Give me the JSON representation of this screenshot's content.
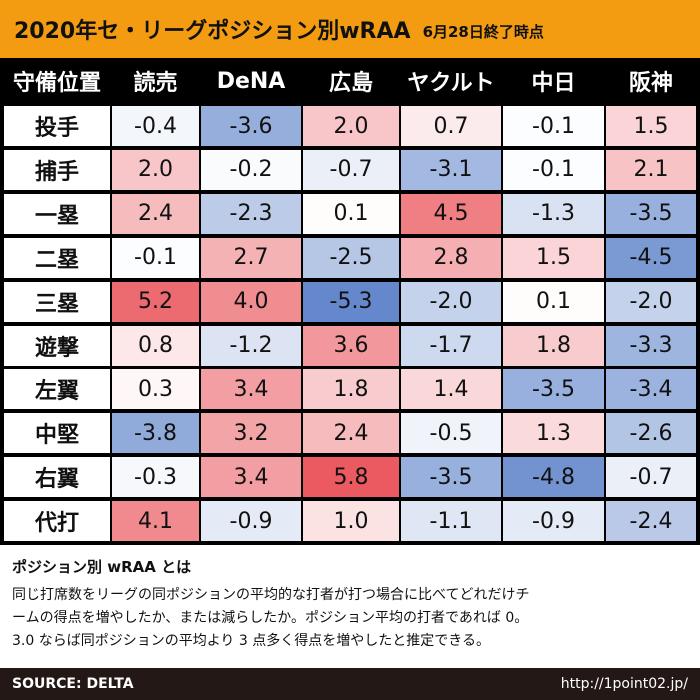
{
  "header": {
    "title": "2020年セ・リーグポジション別wRAA",
    "subtitle": "6月28日終了時点"
  },
  "chart_data": {
    "type": "heatmap",
    "title": "2020年セ・リーグポジション別wRAA",
    "subtitle": "6月28日終了時点",
    "corner_label": "守備位置",
    "columns": [
      "読売",
      "DeNA",
      "広島",
      "ヤクルト",
      "中日",
      "阪神"
    ],
    "rows": [
      "投手",
      "捕手",
      "一塁",
      "二塁",
      "三塁",
      "遊撃",
      "左翼",
      "中堅",
      "右翼",
      "代打"
    ],
    "values": [
      [
        "-0.4",
        "-3.6",
        "2.0",
        "0.7",
        "-0.1",
        "1.5"
      ],
      [
        "2.0",
        "-0.2",
        "-0.7",
        "-3.1",
        "-0.1",
        "2.1"
      ],
      [
        "2.4",
        "-2.3",
        "0.1",
        "4.5",
        "-1.3",
        "-3.5"
      ],
      [
        "-0.1",
        "2.7",
        "-2.5",
        "2.8",
        "1.5",
        "-4.5"
      ],
      [
        "5.2",
        "4.0",
        "-5.3",
        "-2.0",
        "0.1",
        "-2.0"
      ],
      [
        "0.8",
        "-1.2",
        "3.6",
        "-1.7",
        "1.8",
        "-3.3"
      ],
      [
        "0.3",
        "3.4",
        "1.8",
        "1.4",
        "-3.5",
        "-3.4"
      ],
      [
        "-3.8",
        "3.2",
        "2.4",
        "-0.5",
        "1.3",
        "-2.6"
      ],
      [
        "-0.3",
        "3.4",
        "5.8",
        "-3.5",
        "-4.8",
        "-0.7"
      ],
      [
        "4.1",
        "-0.9",
        "1.0",
        "-1.1",
        "-0.9",
        "-2.4"
      ]
    ],
    "color_positive": "#e9545a",
    "color_negative": "#4f78c4",
    "color_neutral": "#ffffff"
  },
  "description": {
    "title": "ポジション別 wRAA とは",
    "lines": [
      "同じ打席数をリーグの同ポジションの平均的な打者が打つ場合に比べてどれだけチ",
      "ームの得点を増やしたか、または減らしたか。ポジション平均の打者であれば 0。",
      "3.0 ならば同ポジションの平均より 3 点多く得点を増やしたと推定できる。"
    ]
  },
  "footer": {
    "source": "SOURCE: DELTA",
    "url": "http://1point02.jp/"
  }
}
